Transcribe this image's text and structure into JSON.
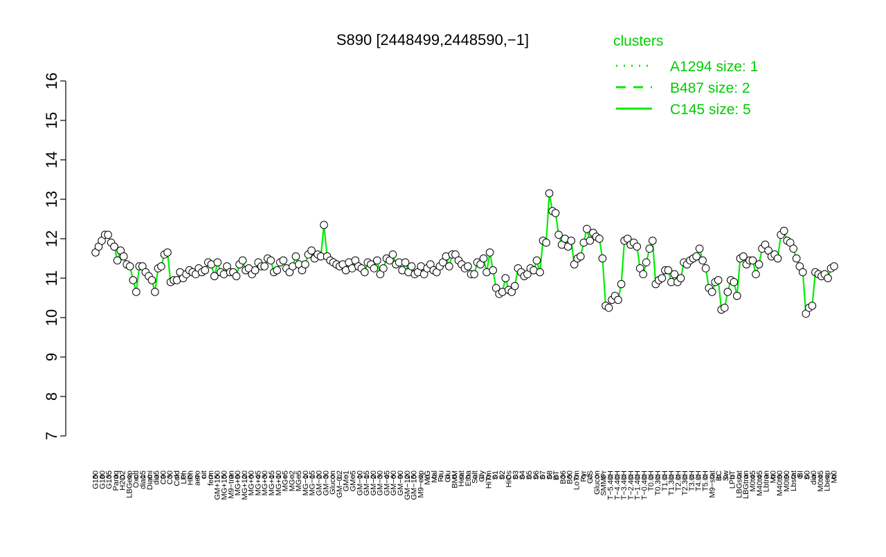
{
  "chart_data": {
    "type": "line",
    "title": "S890 [2448499,2448590,−1]",
    "xlabel": "",
    "ylabel": "",
    "ylim": [
      7,
      16
    ],
    "yticks": [
      "7",
      "8",
      "9",
      "10",
      "11",
      "12",
      "13",
      "14",
      "15",
      "16"
    ],
    "grid": false,
    "x_tick_labels": [
      "G150",
      "G180",
      "G135",
      "Paraq",
      "H2O2",
      "LBGexp",
      "Oxctl",
      "dia15",
      "Diami",
      "dia5",
      "C90",
      "C30",
      "Cold",
      "LPh",
      "HPh",
      "aero",
      "nit",
      "ferm",
      "GM+150",
      "MG+150",
      "M9−tran",
      "MG+90",
      "MG+120",
      "MG+60",
      "MG+45",
      "MG+30",
      "MG+15",
      "MG+10",
      "MG+5",
      "MG−2",
      "MG−5",
      "MG−10",
      "MG−15",
      "GM−20",
      "GM−30",
      "Glucon",
      "GM−0.2",
      "GM−1",
      "GM−5",
      "GM−10",
      "GM−15",
      "GM−20",
      "GM−30",
      "GM−45",
      "GM−60",
      "GM−90",
      "GM−120",
      "GM−150",
      "M9−exp",
      "M/G",
      "Mal",
      "Fru",
      "Glu",
      "BMM",
      "Heat",
      "Etha",
      "Salt",
      "Gly",
      "HiTm",
      "S1",
      "S2",
      "HiOs",
      "S3",
      "S4",
      "S5",
      "S6",
      "S7",
      "S8",
      "BT",
      "B36",
      "B60",
      "LoTm",
      "Pyr",
      "G/S",
      "Glucon",
      "SMMPr",
      "T−5.40H",
      "T−4.40H",
      "T−3.40H",
      "T−2.40H",
      "T−1.40H",
      "T−0.40H",
      "T0.0H",
      "T0.30H",
      "T1.0H",
      "T1.30H",
      "T2.0H",
      "T2.30H",
      "T3.0H",
      "T4.0H",
      "T5.0H",
      "M9−stat",
      "BC",
      "Sw",
      "LPhT",
      "LBGstat",
      "LBGtran",
      "M0t45",
      "M40t45",
      "Lbtran",
      "Mt0",
      "M40t90",
      "M0t90",
      "Lbstat",
      "BI",
      "S0",
      "dia0",
      "M0t45",
      "Lbexp",
      "Mt0"
    ],
    "x_tick_labels_shown": [
      "G150",
      "G180",
      "G135",
      "Paraq",
      "H2O2",
      "LBGexp",
      "Oxctl",
      "dia15",
      "Diami",
      "dia5",
      "C90",
      "C30",
      "Cold",
      "LPh",
      "HPh",
      "aero",
      "nit",
      "ferm",
      "GM+150",
      "MG+150",
      "M9−tran",
      "MG+90",
      "MG+120",
      "MG+60",
      "MG+45",
      "MG+30",
      "MG+15",
      "MG+10",
      "MG+5",
      "MG−2",
      "MG−5",
      "MG−10",
      "MG−15",
      "GM−20",
      "Glucon",
      "GM−0.2",
      "GM−1",
      "GM−5",
      "GM−10",
      "GM−15",
      "GM−20",
      "GM−30",
      "GM−45",
      "GM−60",
      "GM−90",
      "GM−120",
      "GM−150",
      "M9−exp",
      "M/G",
      "Mal",
      "Fru",
      "Glu",
      "BMM",
      "Heat",
      "Etha",
      "Salt",
      "Gly",
      "HiTm",
      "S1",
      "S2",
      "HiOs",
      "S3",
      "S4",
      "S5",
      "S6",
      "S7",
      "S8",
      "BT",
      "B36",
      "B60",
      "LoTm",
      "Pyr",
      "G/S",
      "Glucon",
      "SMMPr",
      "T−5.40H",
      "T−4.40H",
      "T−3.40H",
      "T−2.40H",
      "T−1.40H",
      "T−0.40H",
      "T0.0H",
      "T0.30H",
      "T1.0H",
      "T1.30H",
      "T2.0H",
      "T2.30H",
      "T3.0H",
      "T4.0H",
      "T5.0H",
      "M9−stat",
      "BC",
      "Sw",
      "LPhT",
      "LBGstat",
      "LBGtran",
      "M0t45",
      "M40t45",
      "Lbtran",
      "Mt0",
      "M40t90",
      "M0t90",
      "Lbstat",
      "BI",
      "S0",
      "dia0",
      "M0t45",
      "Lbexp",
      "Mt0"
    ],
    "x_tick_labels_ordered": [
      "G150",
      "G180",
      "G135",
      "Paraq",
      "H2O2",
      "LBGexp",
      "Oxctl",
      "dia15",
      "Diami",
      "dia5",
      "C90",
      "C30",
      "Cold",
      "LPh",
      "HPh",
      "aero",
      "nit",
      "ferm",
      "GM+150",
      "MG+150",
      "M9−tran",
      "MG+90",
      "MG+120",
      "MG+60",
      "MG+45",
      "MG+30",
      "MG+15",
      "MG+10",
      "MG+5",
      "MG−2",
      "MG−5",
      "MG−10",
      "MG−15",
      "GM−20",
      "GM−30",
      "Glucon",
      "GM−0.2",
      "GM−1",
      "GM−5",
      "GM−10",
      "GM−15",
      "GM−20",
      "GM−30",
      "GM−45",
      "GM−60",
      "GM−90",
      "GM−120",
      "GM−150",
      "M9−exp",
      "M/G",
      "Mal",
      "Fru",
      "Glu",
      "BMM",
      "Heat",
      "Etha",
      "Salt",
      "Gly",
      "HiTm",
      "S1",
      "S2",
      "HiOs",
      "S3",
      "S4",
      "S5",
      "S6",
      "S7",
      "S8",
      "BT",
      "B36",
      "B60",
      "LoTm",
      "Pyr",
      "G/S",
      "Glucon",
      "SMMPr",
      "T−5.40H",
      "T−4.40H",
      "T−3.40H",
      "T−2.40H",
      "T−1.40H",
      "T−0.40H",
      "T0.0H",
      "T0.30H",
      "T1.0H",
      "T1.30H",
      "T2.0H",
      "T2.30H",
      "T3.0H",
      "T4.0H",
      "T5.0H",
      "M9−stat",
      "BC",
      "Sw",
      "LPhT",
      "LBGstat",
      "LBGtran",
      "M0t45",
      "M40t45",
      "Lbtran",
      "Mt0",
      "M40t90",
      "M0t90",
      "Lbstat",
      "BI",
      "S0",
      "dia0",
      "M0t45",
      "Lbexp",
      "Mt0"
    ],
    "points": [
      11.65,
      11.8,
      11.95,
      12.1,
      12.1,
      11.9,
      11.8,
      11.45,
      11.7,
      11.55,
      11.35,
      11.3,
      10.95,
      10.65,
      11.3,
      11.3,
      11.15,
      11.05,
      10.95,
      10.65,
      11.25,
      11.3,
      11.6,
      11.65,
      10.9,
      10.95,
      10.95,
      11.15,
      11.0,
      11.1,
      11.2,
      11.15,
      11.1,
      11.25,
      11.15,
      11.2,
      11.4,
      11.35,
      11.05,
      11.4,
      11.15,
      11.1,
      11.3,
      11.15,
      11.15,
      11.05,
      11.35,
      11.45,
      11.2,
      11.25,
      11.1,
      11.2,
      11.4,
      11.3,
      11.3,
      11.5,
      11.45,
      11.15,
      11.2,
      11.4,
      11.45,
      11.25,
      11.15,
      11.3,
      11.55,
      11.35,
      11.2,
      11.35,
      11.6,
      11.7,
      11.5,
      11.6,
      11.55,
      12.35,
      11.55,
      11.45,
      11.4,
      11.35,
      11.3,
      11.35,
      11.2,
      11.4,
      11.25,
      11.45,
      11.3,
      11.25,
      11.15,
      11.4,
      11.35,
      11.25,
      11.45,
      11.1,
      11.25,
      11.5,
      11.45,
      11.6,
      11.35,
      11.4,
      11.2,
      11.4,
      11.15,
      11.3,
      11.1,
      11.15,
      11.3,
      11.1,
      11.25,
      11.35,
      11.2,
      11.15,
      11.3,
      11.4,
      11.55,
      11.3,
      11.6,
      11.6,
      11.45,
      11.35,
      11.25,
      11.3,
      11.1,
      11.1,
      11.4,
      11.35,
      11.5,
      11.15,
      11.65,
      11.2,
      10.75,
      10.6,
      10.65,
      11.0,
      10.7,
      10.65,
      10.8,
      11.25,
      11.15,
      11.05,
      11.1,
      11.25,
      11.2,
      11.45,
      11.15,
      11.95,
      11.9,
      13.15,
      12.7,
      12.65,
      12.1,
      11.85,
      12.0,
      11.8,
      11.95,
      11.35,
      11.5,
      11.55,
      11.9,
      12.25,
      11.95,
      12.15,
      12.05,
      12.0,
      11.5,
      10.3,
      10.25,
      10.45,
      10.55,
      10.45,
      10.85,
      11.95,
      12.0,
      11.85,
      11.9,
      11.8,
      11.25,
      11.1,
      11.4,
      11.75,
      11.95,
      10.85,
      10.95,
      11.0,
      11.2,
      11.2,
      10.9,
      11.1,
      10.9,
      11.0,
      11.4,
      11.35,
      11.45,
      11.5,
      11.55,
      11.75,
      11.45,
      11.25,
      10.75,
      10.65,
      10.9,
      10.95,
      10.2,
      10.25,
      10.65,
      10.95,
      10.9,
      10.55,
      11.5,
      11.55,
      11.35,
      11.45,
      11.45,
      11.1,
      11.35,
      11.75,
      11.85,
      11.7,
      11.55,
      11.6,
      11.5,
      12.1,
      12.2,
      11.95,
      11.9,
      11.75,
      11.5,
      11.3,
      11.15,
      10.1,
      10.25,
      10.3,
      11.15,
      11.1,
      11.05,
      11.1,
      11.0,
      11.25,
      11.3
    ],
    "series": [
      {
        "name": "A1294 size: 1",
        "style": "dotted"
      },
      {
        "name": "B487 size: 2",
        "style": "dashed"
      },
      {
        "name": "C145 size: 5",
        "style": "solid"
      }
    ],
    "legend_title": "clusters",
    "legend_position": "top-right",
    "colors": {
      "line": "#00ee00",
      "points_fill": "#ffffff",
      "points_stroke": "#000000",
      "legend_text": "#00cc00",
      "axis": "#000000"
    }
  }
}
